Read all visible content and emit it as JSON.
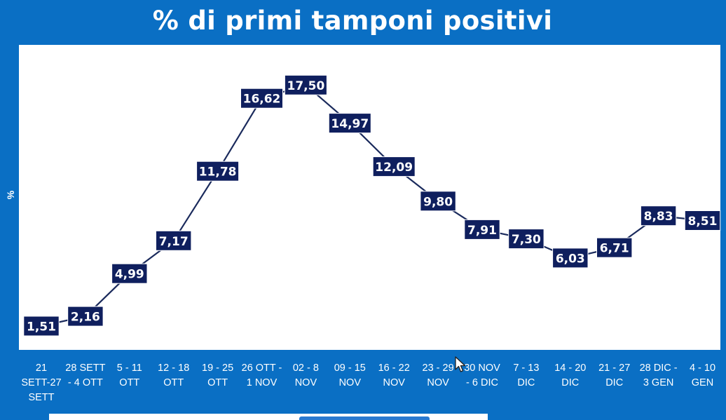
{
  "chart_data": {
    "type": "line",
    "title": "% di primi tamponi positivi",
    "xlabel": "",
    "ylabel": "%",
    "ylim": [
      0,
      19
    ],
    "grid": false,
    "legend": "none",
    "categories": [
      [
        "21",
        "SETT-27",
        "SETT"
      ],
      [
        "28 SETT",
        "- 4 OTT"
      ],
      [
        "5 - 11",
        "OTT"
      ],
      [
        "12 - 18",
        "OTT"
      ],
      [
        "19 - 25",
        "OTT"
      ],
      [
        "26 OTT -",
        "1 NOV"
      ],
      [
        "02 - 8",
        "NOV"
      ],
      [
        "09 - 15",
        "NOV"
      ],
      [
        "16 - 22",
        "NOV"
      ],
      [
        "23 - 29",
        "NOV"
      ],
      [
        "30 NOV",
        "- 6 DIC"
      ],
      [
        "7 - 13",
        "DIC"
      ],
      [
        "14 - 20",
        "DIC"
      ],
      [
        "21 - 27",
        "DIC"
      ],
      [
        "28 DIC -",
        "3 GEN"
      ],
      [
        "4 - 10",
        "GEN"
      ]
    ],
    "values": [
      1.51,
      2.16,
      4.99,
      7.17,
      11.78,
      16.62,
      17.5,
      14.97,
      12.09,
      9.8,
      7.91,
      7.3,
      6.03,
      6.71,
      8.83,
      8.51
    ],
    "labels": [
      "1,51",
      "2,16",
      "4,99",
      "7,17",
      "11,78",
      "16,62",
      "17,50",
      "14,97",
      "12,09",
      "9,80",
      "7,91",
      "7,30",
      "6,03",
      "6,71",
      "8,83",
      "8,51"
    ]
  },
  "colors": {
    "background": "#0a6fc4",
    "plot": "#ffffff",
    "line": "#1a2a5c",
    "label_box": "#0f1f5e",
    "label_text": "#ffffff",
    "tick_text": "#ffffff"
  }
}
